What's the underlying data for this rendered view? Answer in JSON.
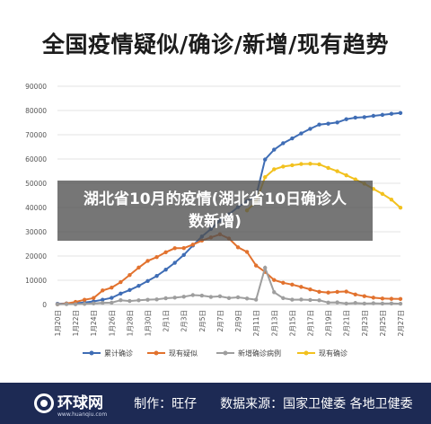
{
  "title": "全国疫情疑似/确诊/新增/现有趋势",
  "overlay_text": "湖北省10月的疫情(湖北省10日确诊人数新增)",
  "footer": {
    "logo": "环球网",
    "logo_sub": "www.huanqiu.com",
    "maker": "制作：旺仔",
    "source": "数据来源：国家卫健委 各地卫健委"
  },
  "chart_data": {
    "type": "line",
    "title": "",
    "xlabel": "",
    "ylabel": "",
    "ylim": [
      0,
      90000
    ],
    "yticks": [
      0,
      10000,
      20000,
      30000,
      40000,
      50000,
      60000,
      70000,
      80000,
      90000
    ],
    "x": [
      "1月20日",
      "1月21日",
      "1月22日",
      "1月23日",
      "1月24日",
      "1月25日",
      "1月26日",
      "1月27日",
      "1月28日",
      "1月29日",
      "1月30日",
      "1月31日",
      "2月1日",
      "2月2日",
      "2月3日",
      "2月4日",
      "2月5日",
      "2月6日",
      "2月7日",
      "2月8日",
      "2月9日",
      "2月10日",
      "2月11日",
      "2月12日",
      "2月13日",
      "2月14日",
      "2月15日",
      "2月16日",
      "2月17日",
      "2月18日",
      "2月19日",
      "2月20日",
      "2月21日",
      "2月22日",
      "2月23日",
      "2月24日",
      "2月25日",
      "2月26日",
      "2月27日"
    ],
    "xtick_labels": [
      "1月20日",
      "1月22日",
      "1月24日",
      "1月26日",
      "1月28日",
      "1月30日",
      "2月1日",
      "2月3日",
      "2月5日",
      "2月7日",
      "2月9日",
      "2月11日",
      "2月13日",
      "2月15日",
      "2月17日",
      "2月19日",
      "2月21日",
      "2月23日",
      "2月25日",
      "2月27日"
    ],
    "grid": true,
    "legend_position": "bottom",
    "series": [
      {
        "name": "累计确诊",
        "color": "#3f6db5",
        "values": [
          291,
          440,
          571,
          830,
          1287,
          1975,
          2744,
          4515,
          5974,
          7711,
          9692,
          11791,
          14380,
          17205,
          20438,
          24324,
          28018,
          31161,
          34546,
          37198,
          40171,
          42638,
          44653,
          59804,
          63851,
          66492,
          68500,
          70548,
          72436,
          74185,
          74576,
          75077,
          76392,
          77042,
          77262,
          77779,
          78190,
          78630,
          78961
        ]
      },
      {
        "name": "现有疑似",
        "color": "#e2722e",
        "values": [
          54,
          393,
          1072,
          1965,
          2684,
          5794,
          6973,
          9239,
          12167,
          15238,
          17988,
          19544,
          21558,
          23214,
          23260,
          24702,
          26359,
          27657,
          28942,
          27215,
          23589,
          21675,
          16067,
          13435,
          10109,
          8969,
          8228,
          7264,
          6242,
          5248,
          4922,
          5206,
          5365,
          4148,
          3434,
          2824,
          2491,
          2358,
          2308
        ]
      },
      {
        "name": "新增确诊病例",
        "color": "#9e9e9e",
        "values": [
          77,
          149,
          131,
          259,
          444,
          688,
          769,
          1771,
          1459,
          1737,
          1982,
          2102,
          2590,
          2829,
          3235,
          3887,
          3694,
          3143,
          3385,
          2652,
          2973,
          2467,
          2015,
          15152,
          5090,
          2641,
          2009,
          2048,
          1886,
          1749,
          820,
          889,
          397,
          648,
          409,
          508,
          406,
          433,
          327
        ]
      },
      {
        "name": "现有确诊",
        "color": "#f2c11e",
        "values": [
          null,
          null,
          null,
          null,
          null,
          null,
          null,
          null,
          null,
          null,
          null,
          null,
          null,
          null,
          null,
          null,
          null,
          null,
          null,
          null,
          null,
          38800,
          42300,
          52526,
          55748,
          56873,
          57416,
          57934,
          58016,
          57805,
          56303,
          54965,
          53284,
          51606,
          49824,
          47672,
          45604,
          43258,
          39919
        ]
      }
    ]
  }
}
